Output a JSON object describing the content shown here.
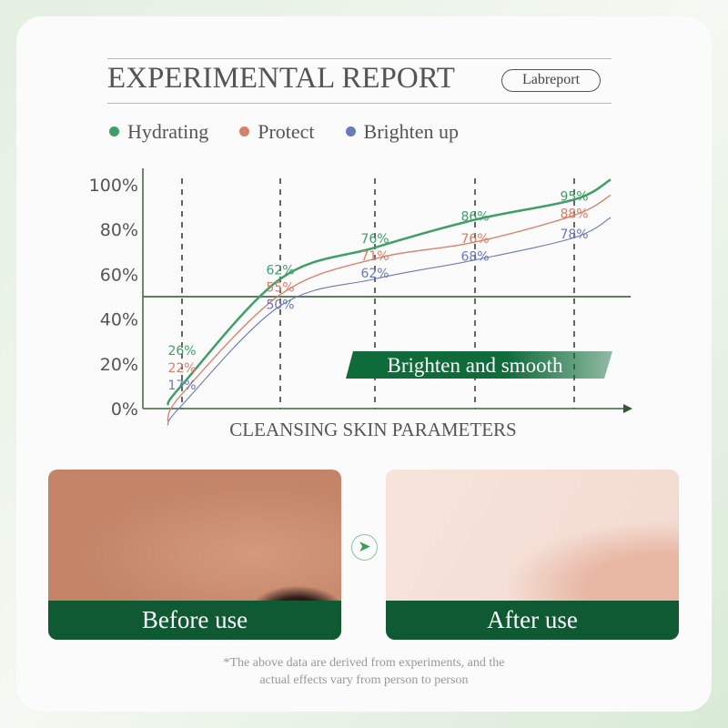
{
  "header": {
    "title": "EXPERIMENTAL REPORT",
    "badge": "Labreport"
  },
  "chart_data": {
    "type": "line",
    "xlabel": "CLEANSING SKIN PARAMETERS",
    "ylabel": "",
    "ylim": [
      0,
      100
    ],
    "yticks": [
      "0%",
      "20%",
      "40%",
      "60%",
      "80%",
      "100%"
    ],
    "x": [
      1,
      2,
      3,
      4,
      5
    ],
    "reference_line": 50,
    "banner": "Brighten and smooth",
    "legend_position": "top",
    "series": [
      {
        "name": "Hydrating",
        "color": "#3f9f68",
        "values": [
          26,
          62,
          76,
          86,
          95
        ],
        "labels": [
          "26%",
          "62%",
          "76%",
          "86%",
          "95%"
        ]
      },
      {
        "name": "Protect",
        "color": "#d97e67",
        "values": [
          22,
          55,
          71,
          76,
          88
        ],
        "labels": [
          "22%",
          "55%",
          "71%",
          "76%",
          "88%"
        ]
      },
      {
        "name": "Brighten up",
        "color": "#6b79bd",
        "values": [
          17,
          50,
          62,
          68,
          78
        ],
        "labels": [
          "17%",
          "50%",
          "62%",
          "68%",
          "78%"
        ]
      }
    ]
  },
  "photos": {
    "before": "Before use",
    "after": "After use"
  },
  "footnote": [
    "*The above data are derived from experiments, and the",
    "actual effects vary from person to person"
  ]
}
